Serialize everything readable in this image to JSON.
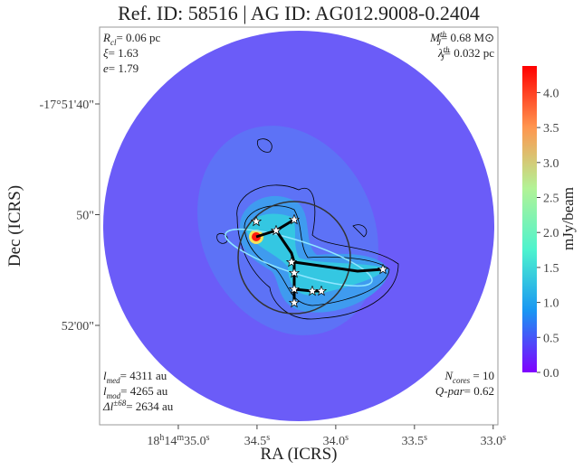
{
  "chart_data": {
    "type": "image",
    "title": "Ref. ID: 58516 | AG ID: AG012.9008-0.2404",
    "xlabel": "RA (ICRS)",
    "ylabel": "Dec (ICRS)",
    "xlim": [
      35.5,
      32.97
    ],
    "xticks": [
      {
        "value": 35.0,
        "label": "18h14m35.0s"
      },
      {
        "value": 34.5,
        "label": "34.5s"
      },
      {
        "value": 34.0,
        "label": "34.0s"
      },
      {
        "value": 33.5,
        "label": "33.5s"
      },
      {
        "value": 33.0,
        "label": "33.0s"
      }
    ],
    "ylim": [
      68.98,
      33.06
    ],
    "yticks": [
      {
        "value": 40,
        "label": "-17°51'40\""
      },
      {
        "value": 50,
        "label": "50\""
      },
      {
        "value": 60,
        "label": "52'00\""
      }
    ],
    "colorbar": {
      "label": "mJy/beam",
      "clim": [
        0,
        4.38
      ],
      "colors": [
        "#8000ff",
        "#1996f3",
        "#4df3ce",
        "#b2f396",
        "#ff964f",
        "#ff0000"
      ],
      "ticks": [
        {
          "value": 0,
          "label": "0.0"
        },
        {
          "value": 0.5,
          "label": "0.5"
        },
        {
          "value": 1,
          "label": "1.0"
        },
        {
          "value": 1.5,
          "label": "1.5"
        },
        {
          "value": 2,
          "label": "2.0"
        },
        {
          "value": 2.5,
          "label": "2.5"
        },
        {
          "value": 3,
          "label": "3.0"
        },
        {
          "value": 3.5,
          "label": "3.5"
        },
        {
          "value": 4,
          "label": "4.0"
        }
      ]
    },
    "annotations": {
      "top_left": [
        {
          "sym": "R",
          "sub": "cl",
          "text": "= 0.06 pc"
        },
        {
          "sym": "ξ",
          "text": "= 1.63"
        },
        {
          "sym": "e",
          "text": "= 1.79"
        }
      ],
      "top_right": [
        {
          "sym": "M",
          "sub": "J",
          "sup": "th",
          "text": "= 0.68 M⊙"
        },
        {
          "sym": "λ",
          "sub": "J",
          "sup": "th",
          "text": "= 0.032 pc"
        }
      ],
      "bottom_left": [
        {
          "sym": "l",
          "sub": "med",
          "text": "= 4311 au"
        },
        {
          "sym": "l",
          "sub": "mod",
          "text": "= 4265 au"
        },
        {
          "sym": "Δl",
          "sup": "±68",
          "text": "= 2634 au"
        }
      ],
      "bottom_right": [
        {
          "sym": "N",
          "sub": "cores",
          "text": " = 10"
        },
        {
          "sym": "Q-par",
          "text": "= 0.62"
        }
      ]
    }
  }
}
